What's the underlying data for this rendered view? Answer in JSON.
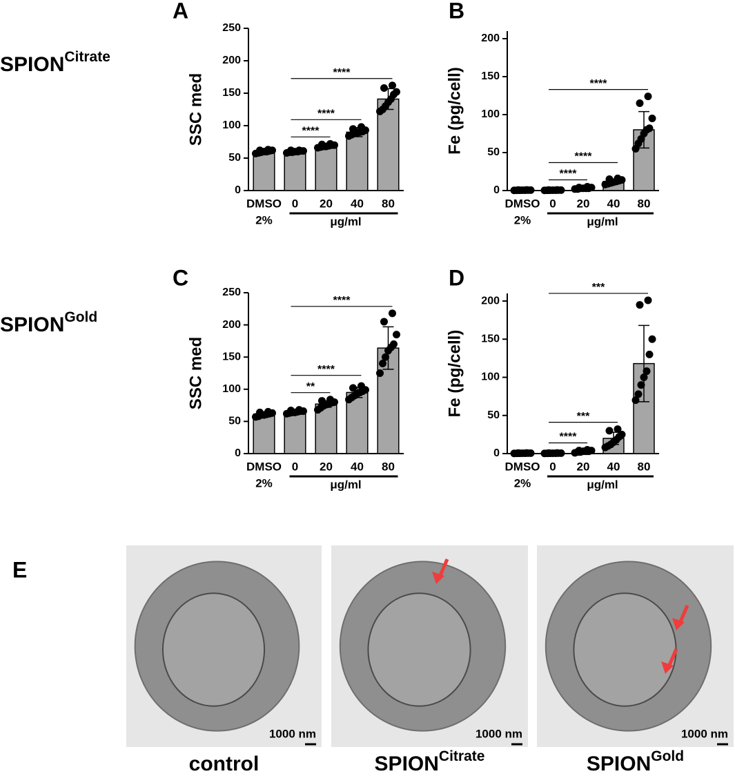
{
  "chart_data": [
    {
      "type": "bar",
      "panel": "A",
      "y_label": "SSC med",
      "categories": [
        "DMSO",
        "0",
        "20",
        "40",
        "80"
      ],
      "category_sublabels": [
        "2%",
        null,
        null,
        null,
        null
      ],
      "group_label": "μg/ml",
      "values": [
        60,
        60,
        69,
        90,
        141
      ],
      "errors": [
        3,
        2,
        3,
        7,
        16
      ],
      "points": [
        [
          57,
          58,
          59,
          60,
          60,
          61,
          62,
          62,
          63
        ],
        [
          58,
          59,
          59,
          60,
          60,
          61,
          61,
          62,
          62
        ],
        [
          66,
          67,
          68,
          68,
          69,
          70,
          70,
          71,
          72
        ],
        [
          84,
          86,
          88,
          89,
          90,
          91,
          93,
          95,
          98
        ],
        [
          122,
          125,
          130,
          136,
          141,
          148,
          152,
          158,
          162
        ]
      ],
      "color": "#a6a6a6",
      "ylim": [
        0,
        250
      ],
      "yticks": [
        0,
        50,
        100,
        150,
        200,
        250
      ],
      "comparisons": [
        {
          "from": 1,
          "to": 2,
          "label": "****"
        },
        {
          "from": 1,
          "to": 3,
          "label": "****"
        },
        {
          "from": 1,
          "to": 4,
          "label": "****"
        }
      ]
    },
    {
      "type": "bar",
      "panel": "B",
      "y_label": "Fe (pg/cell)",
      "categories": [
        "DMSO",
        "0",
        "20",
        "40",
        "80"
      ],
      "category_sublabels": [
        "2%",
        null,
        null,
        null,
        null
      ],
      "group_label": "μg/ml",
      "values": [
        0.5,
        0.5,
        3,
        12,
        80
      ],
      "errors": [
        0.3,
        0.3,
        1,
        3,
        24
      ],
      "points": [
        [
          0.2,
          0.3,
          0.4,
          0.5,
          0.5,
          0.6,
          0.6,
          0.7,
          0.8
        ],
        [
          0.2,
          0.3,
          0.4,
          0.5,
          0.5,
          0.6,
          0.6,
          0.7,
          0.8
        ],
        [
          2,
          2,
          3,
          3,
          3,
          3,
          4,
          4,
          5
        ],
        [
          8,
          9,
          10,
          11,
          12,
          13,
          14,
          15,
          16
        ],
        [
          55,
          62,
          68,
          75,
          80,
          82,
          95,
          115,
          124
        ]
      ],
      "color": "#a6a6a6",
      "ylim": [
        0,
        210
      ],
      "yticks": [
        0,
        50,
        100,
        150,
        200
      ],
      "comparisons": [
        {
          "from": 1,
          "to": 2,
          "label": "****"
        },
        {
          "from": 1,
          "to": 3,
          "label": "****"
        },
        {
          "from": 1,
          "to": 4,
          "label": "****"
        }
      ]
    },
    {
      "type": "bar",
      "panel": "C",
      "y_label": "SSC med",
      "categories": [
        "DMSO",
        "0",
        "20",
        "40",
        "80"
      ],
      "category_sublabels": [
        "2%",
        null,
        null,
        null,
        null
      ],
      "group_label": "μg/ml",
      "values": [
        61,
        65,
        77,
        95,
        164
      ],
      "errors": [
        3,
        3,
        5,
        8,
        33
      ],
      "points": [
        [
          57,
          58,
          60,
          60,
          61,
          62,
          63,
          64,
          65
        ],
        [
          62,
          63,
          64,
          64,
          65,
          66,
          66,
          67,
          68
        ],
        [
          68,
          71,
          74,
          76,
          77,
          79,
          80,
          82,
          84
        ],
        [
          84,
          87,
          90,
          93,
          95,
          97,
          99,
          102,
          105
        ],
        [
          125,
          140,
          150,
          160,
          165,
          170,
          185,
          205,
          218
        ]
      ],
      "color": "#a6a6a6",
      "ylim": [
        0,
        250
      ],
      "yticks": [
        0,
        50,
        100,
        150,
        200,
        250
      ],
      "comparisons": [
        {
          "from": 1,
          "to": 2,
          "label": "**"
        },
        {
          "from": 1,
          "to": 3,
          "label": "****"
        },
        {
          "from": 1,
          "to": 4,
          "label": "****"
        }
      ]
    },
    {
      "type": "bar",
      "panel": "D",
      "y_label": "Fe (pg/cell)",
      "categories": [
        "DMSO",
        "0",
        "20",
        "40",
        "80"
      ],
      "category_sublabels": [
        "2%",
        null,
        null,
        null,
        null
      ],
      "group_label": "μg/ml",
      "values": [
        0.5,
        0.5,
        3,
        20,
        118
      ],
      "errors": [
        0.3,
        0.3,
        1,
        8,
        50
      ],
      "points": [
        [
          0.2,
          0.3,
          0.4,
          0.5,
          0.5,
          0.6,
          0.6,
          0.7,
          0.8
        ],
        [
          0.2,
          0.3,
          0.4,
          0.5,
          0.5,
          0.6,
          0.6,
          0.7,
          0.8
        ],
        [
          1,
          2,
          2,
          3,
          3,
          3,
          4,
          4,
          5
        ],
        [
          8,
          10,
          12,
          15,
          18,
          22,
          25,
          30,
          32
        ],
        [
          70,
          78,
          90,
          100,
          108,
          130,
          150,
          195,
          201
        ]
      ],
      "color": "#a6a6a6",
      "ylim": [
        0,
        210
      ],
      "yticks": [
        0,
        50,
        100,
        150,
        200
      ],
      "comparisons": [
        {
          "from": 1,
          "to": 2,
          "label": "****"
        },
        {
          "from": 1,
          "to": 3,
          "label": "***"
        },
        {
          "from": 1,
          "to": 4,
          "label": "***"
        }
      ]
    }
  ],
  "row_labels": [
    {
      "base": "SPION",
      "sup": "Citrate"
    },
    {
      "base": "SPION",
      "sup": "Gold"
    }
  ],
  "panel_e": {
    "letter": "E",
    "images": [
      {
        "caption": {
          "base": "control",
          "sup": null
        },
        "scale_bar": "1000 nm"
      },
      {
        "caption": {
          "base": "SPION",
          "sup": "Citrate"
        },
        "scale_bar": "1000 nm"
      },
      {
        "caption": {
          "base": "SPION",
          "sup": "Gold"
        },
        "scale_bar": "1000 nm"
      }
    ]
  }
}
